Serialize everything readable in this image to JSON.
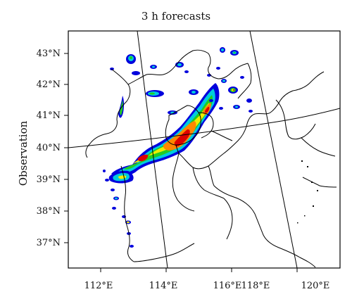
{
  "figure": {
    "title": "3 h forecasts",
    "ylabel": "Observation"
  },
  "lat_ticks": [
    "43°N",
    "42°N",
    "41°N",
    "40°N",
    "39°N",
    "38°N",
    "37°N"
  ],
  "lon_ticks": [
    "112°E",
    "114°E",
    "116°E",
    "118°E",
    "120°E"
  ],
  "colors": {
    "light_rain": "#0000dd",
    "moderate": "#00ccdd",
    "heavy": "#22cc22",
    "very_heavy": "#eeee00",
    "intense": "#ff8800",
    "extreme": "#dd0000",
    "boundary": "#000000"
  }
}
